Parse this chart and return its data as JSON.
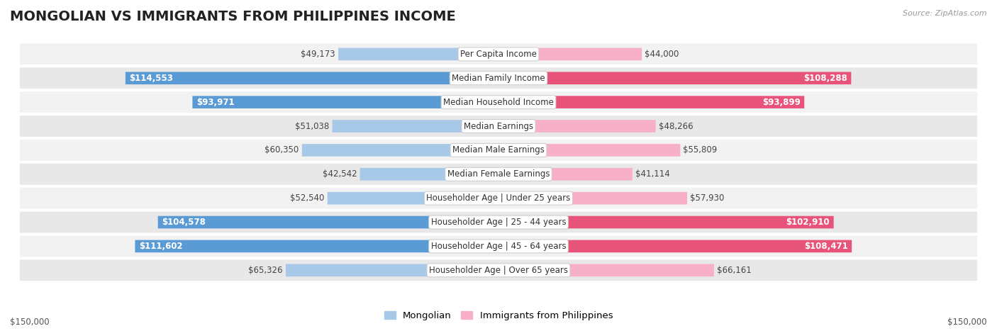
{
  "title": "MONGOLIAN VS IMMIGRANTS FROM PHILIPPINES INCOME",
  "source": "Source: ZipAtlas.com",
  "categories": [
    "Per Capita Income",
    "Median Family Income",
    "Median Household Income",
    "Median Earnings",
    "Median Male Earnings",
    "Median Female Earnings",
    "Householder Age | Under 25 years",
    "Householder Age | 25 - 44 years",
    "Householder Age | 45 - 64 years",
    "Householder Age | Over 65 years"
  ],
  "mongolian_values": [
    49173,
    114553,
    93971,
    51038,
    60350,
    42542,
    52540,
    104578,
    111602,
    65326
  ],
  "philippines_values": [
    44000,
    108288,
    93899,
    48266,
    55809,
    41114,
    57930,
    102910,
    108471,
    66161
  ],
  "mongolian_labels": [
    "$49,173",
    "$114,553",
    "$93,971",
    "$51,038",
    "$60,350",
    "$42,542",
    "$52,540",
    "$104,578",
    "$111,602",
    "$65,326"
  ],
  "philippines_labels": [
    "$44,000",
    "$108,288",
    "$93,899",
    "$48,266",
    "$55,809",
    "$41,114",
    "$57,930",
    "$102,910",
    "$108,471",
    "$66,161"
  ],
  "max_value": 150000,
  "mongolian_color_light": "#a8c8e8",
  "mongolian_color_dark": "#5b9bd5",
  "philippines_color_light": "#f8afc8",
  "philippines_color_dark": "#e8537a",
  "mongolian_label_threshold": 80000,
  "philippines_label_threshold": 80000,
  "background_color": "#ffffff",
  "row_bg_even": "#f2f2f2",
  "row_bg_odd": "#e8e8e8",
  "legend_mongolian": "Mongolian",
  "legend_philippines": "Immigrants from Philippines",
  "xlabel_left": "$150,000",
  "xlabel_right": "$150,000",
  "title_fontsize": 14,
  "label_fontsize": 8.5,
  "category_fontsize": 8.5
}
